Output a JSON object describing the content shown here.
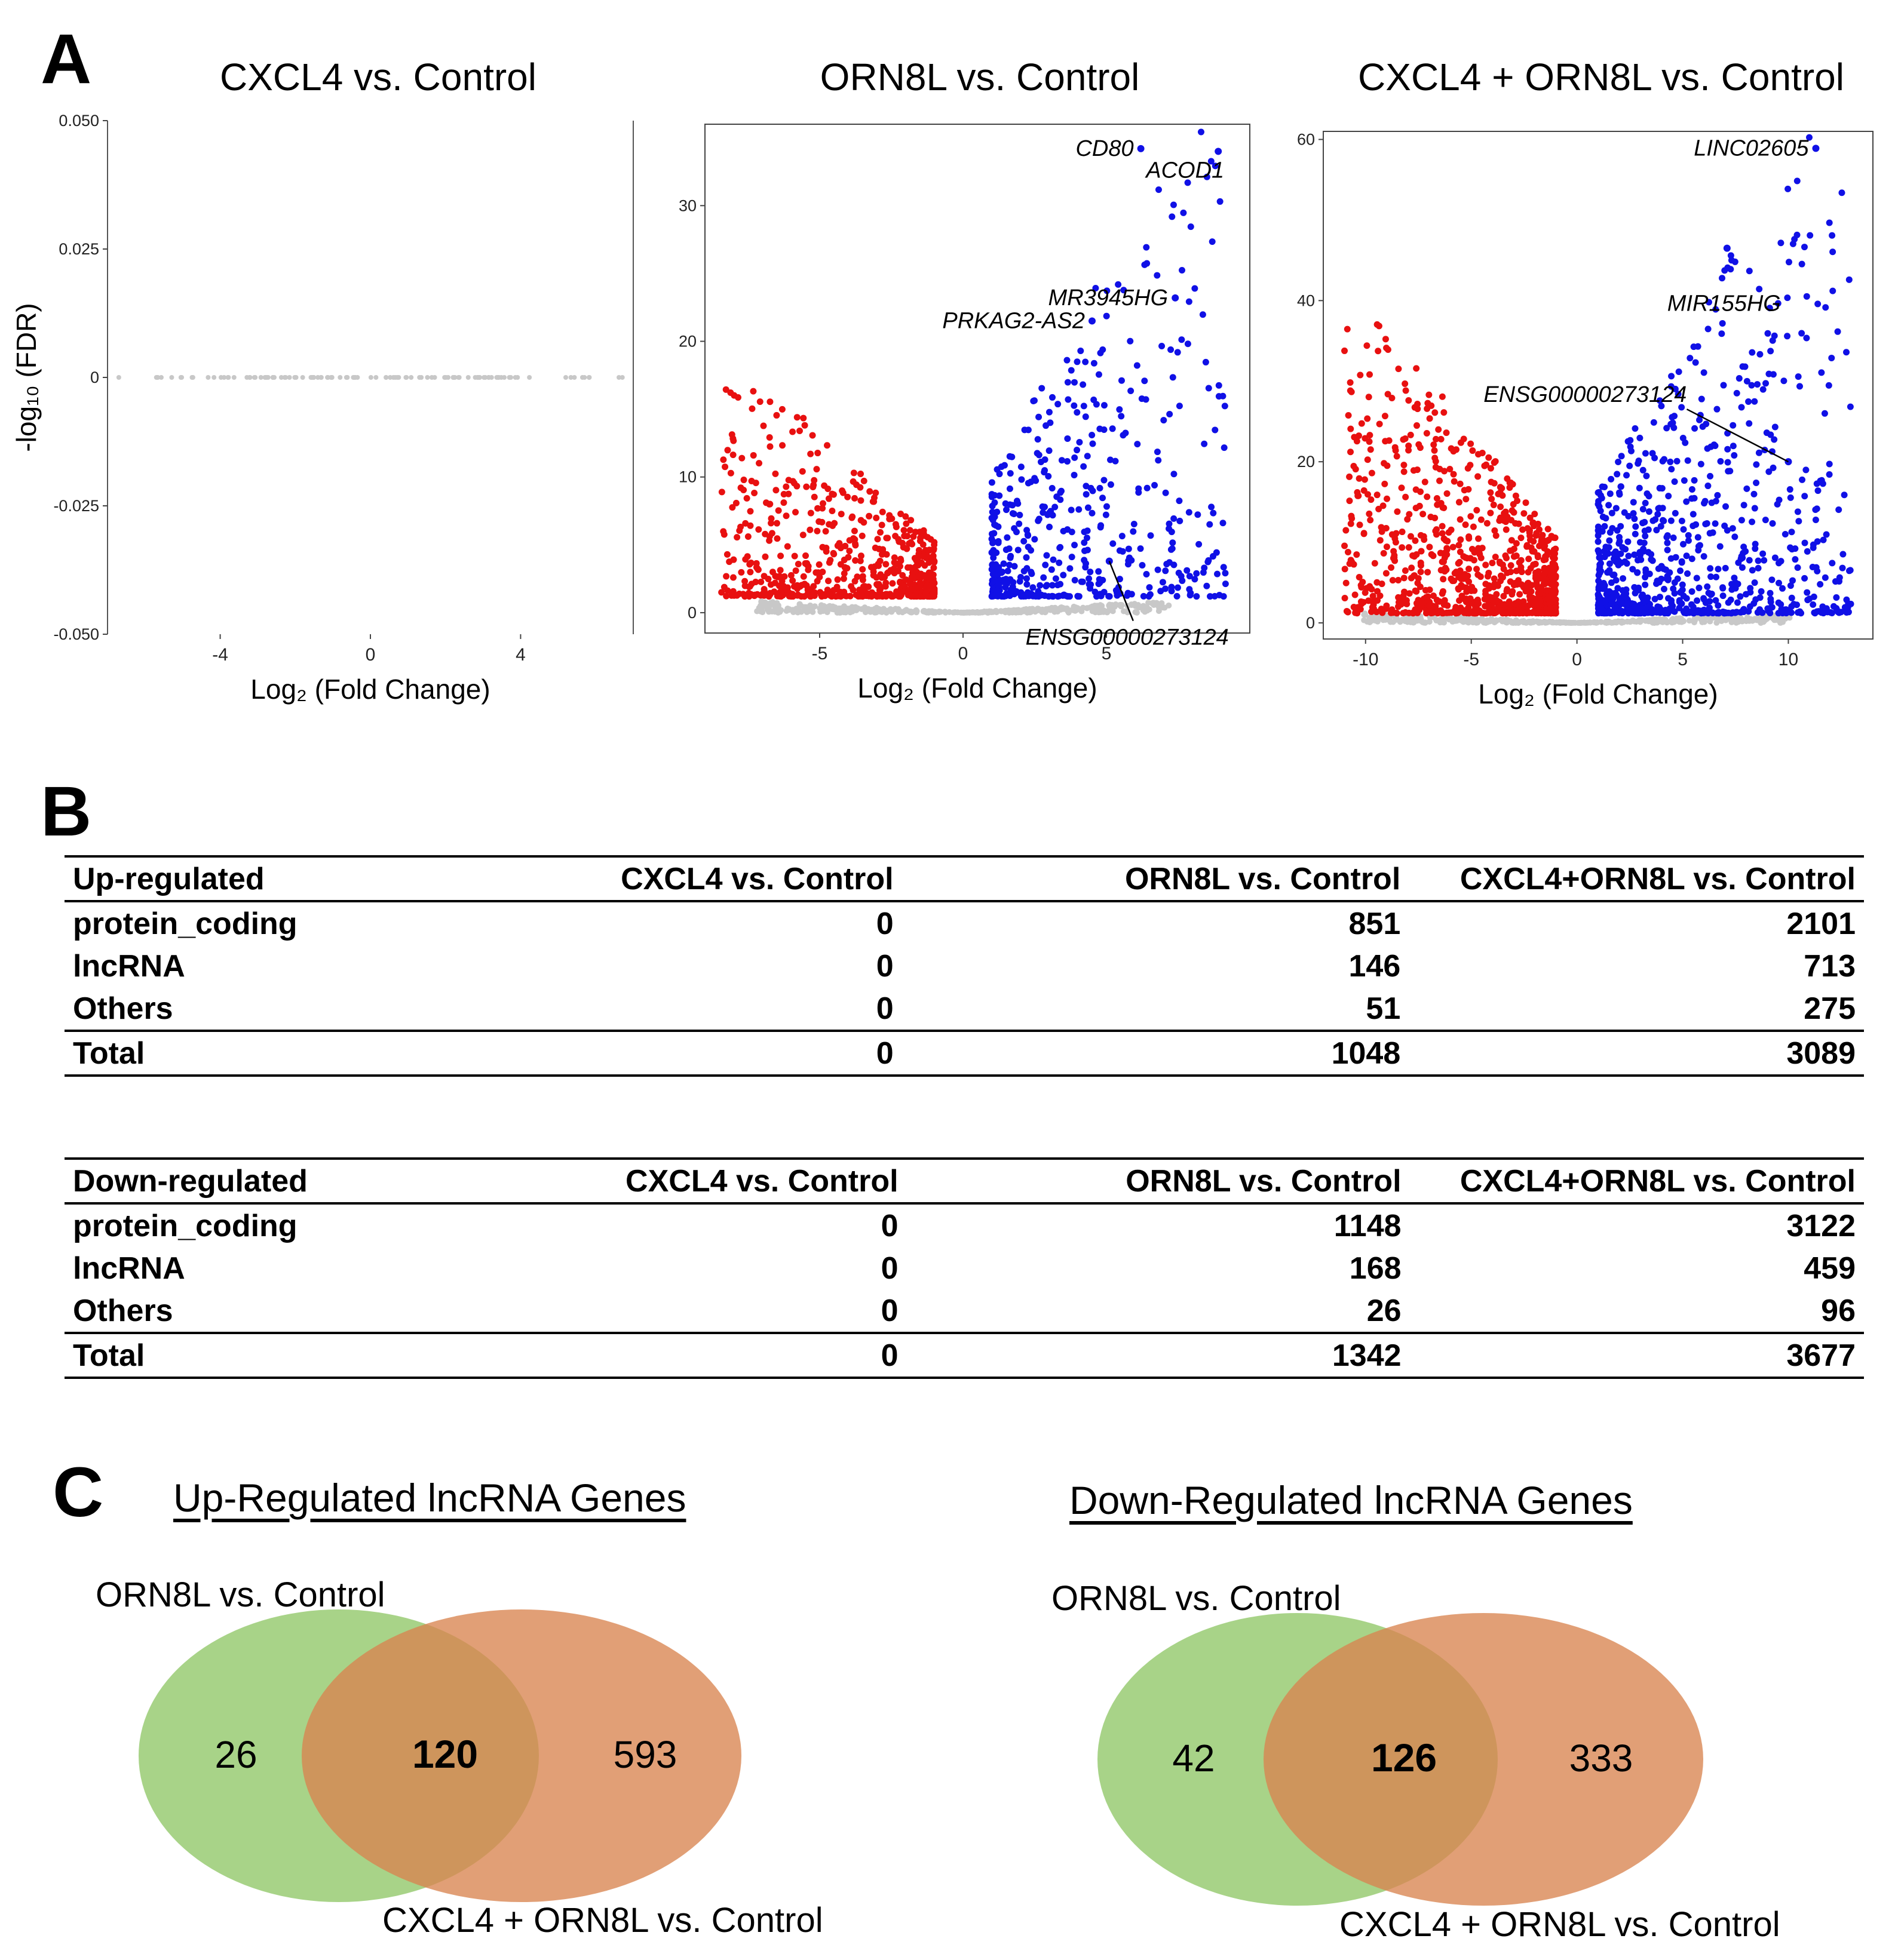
{
  "panel_labels": [
    "A",
    "B",
    "C"
  ],
  "colors": {
    "up": "#1010e6",
    "down": "#e81010",
    "nonsig": "#c8c8c8",
    "venn_left": "#8fc766",
    "venn_right": "#d9844f"
  },
  "panel_a": {
    "chart_data": [
      {
        "type": "scatter",
        "title": "CXCL4 vs. Control",
        "xlabel": "Log₂ (Fold Change)",
        "ylabel": "-log₁₀ (FDR)",
        "xlim": [
          -7,
          7
        ],
        "ylim": [
          -0.05,
          0.05
        ],
        "xticks": [
          -4,
          0,
          4
        ],
        "yticks": [
          -0.05,
          -0.025,
          0,
          0.025,
          0.05
        ],
        "ytick_labels": [
          "-0.050",
          "-0.025",
          "0",
          "0.025",
          "0.050"
        ],
        "nonsig_line": {
          "y": 0,
          "x_min": -5.7,
          "x_max": 6.8
        },
        "up_count": 0,
        "down_count": 0,
        "labels": []
      },
      {
        "type": "scatter",
        "title": "ORN8L vs. Control",
        "xlabel": "Log₂ (Fold Change)",
        "ylabel": "",
        "xlim": [
          -9,
          10
        ],
        "ylim": [
          -1.5,
          36
        ],
        "xticks": [
          -5,
          0,
          5
        ],
        "yticks": [
          0,
          10,
          20,
          30
        ],
        "ytick_labels": [
          "0",
          "10",
          "20",
          "30"
        ],
        "up": {
          "x_min": 1.0,
          "x_max": 9.2,
          "y_max": 34,
          "count": 1048
        },
        "down": {
          "x_min": -8.5,
          "x_max": -1.0,
          "y_max": 15.5,
          "count": 1342
        },
        "labels": [
          {
            "text": "CD80",
            "x": 6.2,
            "y": 34.2
          },
          {
            "text": "ACOD1",
            "x": 8.9,
            "y": 34.0
          },
          {
            "text": "MR3945HG",
            "x": 7.4,
            "y": 23.2
          },
          {
            "text": "PRKAG2-AS2",
            "x": 4.5,
            "y": 21.5
          },
          {
            "text": "ENSG00000273124",
            "x": 5.1,
            "y": 3.8
          }
        ]
      },
      {
        "type": "scatter",
        "title": "CXCL4 + ORN8L vs. Control",
        "xlabel": "Log₂ (Fold Change)",
        "ylabel": "",
        "xlim": [
          -12,
          14
        ],
        "ylim": [
          -2,
          61
        ],
        "xticks": [
          -10,
          -5,
          0,
          5,
          10
        ],
        "yticks": [
          0,
          20,
          40,
          60
        ],
        "ytick_labels": [
          "0",
          "20",
          "40",
          "60"
        ],
        "up": {
          "x_min": 1.0,
          "x_max": 13.0,
          "y_max": 59,
          "count": 3089
        },
        "down": {
          "x_min": -11.0,
          "x_max": -1.0,
          "y_max": 36,
          "count": 3677
        },
        "labels": [
          {
            "text": "LINC02605",
            "x": 11.3,
            "y": 58.9
          },
          {
            "text": "MIR155HG",
            "x": 7.1,
            "y": 46.5
          },
          {
            "text": "ENSG00000273124",
            "x": 10.0,
            "y": 20.0
          }
        ]
      }
    ]
  },
  "panel_b": {
    "columns": [
      "CXCL4 vs. Control",
      "ORN8L vs. Control",
      "CXCL4+ORN8L vs. Control"
    ],
    "up_regulated": {
      "header": "Up-regulated",
      "rows": [
        {
          "label": "protein_coding",
          "values": [
            "0",
            "851",
            "2101"
          ]
        },
        {
          "label": "lncRNA",
          "values": [
            "0",
            "146",
            "713"
          ]
        },
        {
          "label": "Others",
          "values": [
            "0",
            "51",
            "275"
          ]
        }
      ],
      "total": {
        "label": "Total",
        "values": [
          "0",
          "1048",
          "3089"
        ]
      }
    },
    "down_regulated": {
      "header": "Down-regulated",
      "rows": [
        {
          "label": "protein_coding",
          "values": [
            "0",
            "1148",
            "3122"
          ]
        },
        {
          "label": "lncRNA",
          "values": [
            "0",
            "168",
            "459"
          ]
        },
        {
          "label": "Others",
          "values": [
            "0",
            "26",
            "96"
          ]
        }
      ],
      "total": {
        "label": "Total",
        "values": [
          "0",
          "1342",
          "3677"
        ]
      }
    }
  },
  "panel_c": {
    "up": {
      "title": "Up-Regulated lncRNA Genes",
      "left_label": "ORN8L vs. Control",
      "right_label": "CXCL4 + ORN8L vs. Control",
      "left_only": "26",
      "overlap": "120",
      "right_only": "593"
    },
    "down": {
      "title": "Down-Regulated lncRNA Genes",
      "left_label": "ORN8L vs. Control",
      "right_label": "CXCL4 + ORN8L vs. Control",
      "left_only": "42",
      "overlap": "126",
      "right_only": "333"
    }
  }
}
